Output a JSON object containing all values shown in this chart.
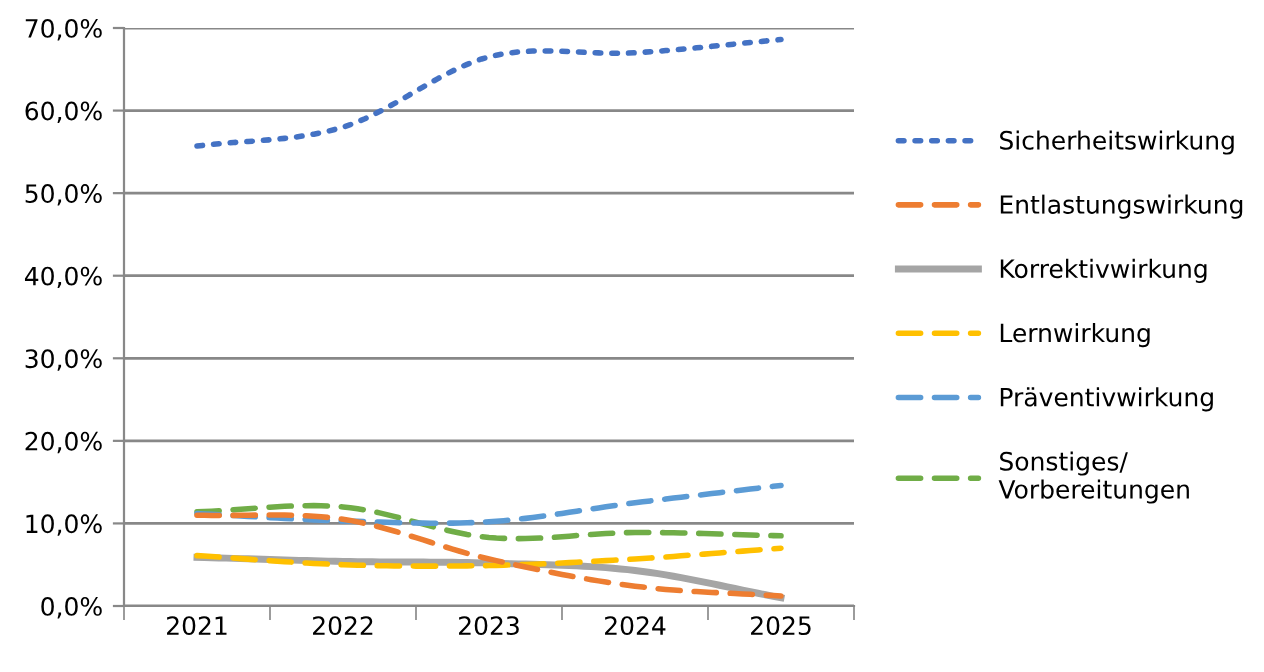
{
  "chart_data": {
    "type": "line",
    "categories": [
      "2021",
      "2022",
      "2023",
      "2024",
      "2025"
    ],
    "series": [
      {
        "name": "Sicherheitswirkung",
        "color": "#4472c4",
        "line_style": "dotted",
        "values": [
          55.7,
          58.0,
          66.5,
          67.0,
          68.6
        ]
      },
      {
        "name": "Entlastungswirkung",
        "color": "#ed7d31",
        "line_style": "dashed",
        "values": [
          11.0,
          10.5,
          5.7,
          2.4,
          1.2
        ]
      },
      {
        "name": "Korrektivwirkung",
        "color": "#a5a5a5",
        "line_style": "solid",
        "values": [
          5.9,
          5.4,
          5.2,
          4.3,
          1.0
        ]
      },
      {
        "name": "Lernwirkung",
        "color": "#ffc000",
        "line_style": "dashed",
        "values": [
          6.1,
          5.0,
          4.9,
          5.7,
          7.0
        ]
      },
      {
        "name": "Präventivwirkung",
        "color": "#5b9bd5",
        "line_style": "dashed",
        "values": [
          11.2,
          10.3,
          10.2,
          12.5,
          14.6
        ]
      },
      {
        "name": "Sonstiges/\nVorbereitungen",
        "color": "#70ad47",
        "line_style": "dashed",
        "values": [
          11.4,
          12.0,
          8.3,
          8.9,
          8.5
        ]
      }
    ],
    "ylim": [
      0,
      70
    ],
    "yticks": [
      {
        "value": 0,
        "label": "0,0%"
      },
      {
        "value": 10,
        "label": "10,0%"
      },
      {
        "value": 20,
        "label": "20,0%"
      },
      {
        "value": 30,
        "label": "30,0%"
      },
      {
        "value": 40,
        "label": "40,0%"
      },
      {
        "value": 50,
        "label": "50,0%"
      },
      {
        "value": 60,
        "label": "60,0%"
      },
      {
        "value": 70,
        "label": "70,0%"
      }
    ],
    "grid": "y",
    "legend": "right",
    "marker": "none"
  }
}
